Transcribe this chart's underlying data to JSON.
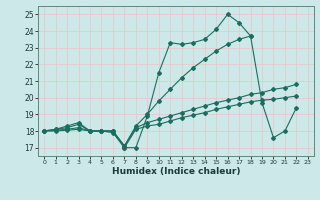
{
  "xlabel": "Humidex (Indice chaleur)",
  "xlim": [
    -0.5,
    23.5
  ],
  "ylim": [
    16.5,
    25.5
  ],
  "yticks": [
    17,
    18,
    19,
    20,
    21,
    22,
    23,
    24,
    25
  ],
  "xticks": [
    0,
    1,
    2,
    3,
    4,
    5,
    6,
    7,
    8,
    9,
    10,
    11,
    12,
    13,
    14,
    15,
    16,
    17,
    18,
    19,
    20,
    21,
    22,
    23
  ],
  "bg_color": "#cce8e8",
  "grid_color": "#e8c8c8",
  "line_color": "#1a6e60",
  "s1_x": [
    0,
    1,
    2,
    3,
    4,
    5,
    6,
    7,
    8,
    9,
    10,
    11,
    12,
    13,
    14,
    15,
    16,
    17,
    18,
    19,
    20,
    21,
    22
  ],
  "s1_y": [
    18.0,
    18.1,
    18.2,
    18.4,
    18.0,
    18.0,
    18.0,
    17.0,
    17.0,
    18.9,
    21.5,
    23.3,
    23.2,
    23.3,
    23.5,
    24.1,
    25.0,
    24.5,
    23.7,
    19.7,
    17.6,
    18.0,
    19.4
  ],
  "s2_x": [
    0,
    1,
    2,
    3,
    4,
    5,
    6,
    7,
    8,
    9,
    10,
    11,
    12,
    13,
    14,
    15,
    16,
    17,
    18
  ],
  "s2_y": [
    18.0,
    18.1,
    18.3,
    18.5,
    18.0,
    18.0,
    18.0,
    17.1,
    18.3,
    19.0,
    19.8,
    20.5,
    21.2,
    21.8,
    22.3,
    22.8,
    23.2,
    23.5,
    23.7
  ],
  "s3_x": [
    0,
    1,
    2,
    3,
    4,
    5,
    6,
    7,
    8,
    9,
    10,
    11,
    12,
    13,
    14,
    15,
    16,
    17,
    18,
    19,
    20,
    21,
    22
  ],
  "s3_y": [
    18.0,
    18.05,
    18.1,
    18.2,
    18.0,
    18.0,
    18.0,
    17.1,
    18.2,
    18.5,
    18.7,
    18.9,
    19.1,
    19.3,
    19.5,
    19.7,
    19.85,
    20.0,
    20.2,
    20.3,
    20.5,
    20.6,
    20.8
  ],
  "s4_x": [
    0,
    1,
    2,
    3,
    4,
    5,
    6,
    7,
    8,
    9,
    10,
    11,
    12,
    13,
    14,
    15,
    16,
    17,
    18,
    19,
    20,
    21,
    22
  ],
  "s4_y": [
    18.0,
    18.0,
    18.05,
    18.1,
    18.0,
    18.0,
    17.9,
    17.0,
    18.1,
    18.3,
    18.4,
    18.6,
    18.8,
    18.95,
    19.1,
    19.3,
    19.45,
    19.6,
    19.75,
    19.85,
    19.9,
    20.0,
    20.1
  ]
}
